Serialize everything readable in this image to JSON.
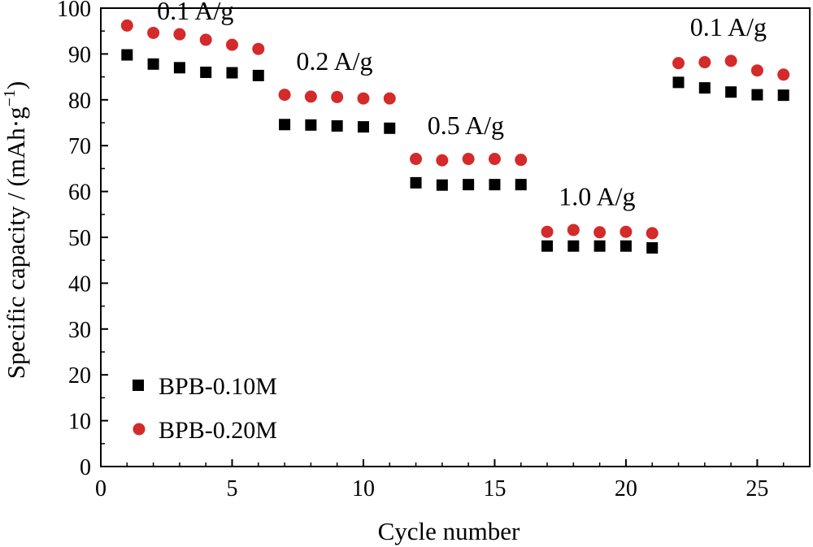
{
  "chart_data": {
    "type": "scatter",
    "xlabel": "Cycle number",
    "ylabel": "Specific capacity / (mAh·g",
    "ylabel_sup": "−1",
    "ylabel_close": ")",
    "xlim": [
      0,
      27
    ],
    "ylim": [
      0,
      100
    ],
    "xticks": [
      0,
      5,
      10,
      15,
      20,
      25
    ],
    "yticks": [
      0,
      10,
      20,
      30,
      40,
      50,
      60,
      70,
      80,
      90,
      100
    ],
    "grid": false,
    "legend_position": "bottom-left",
    "series": [
      {
        "name": "BPB-0.10M",
        "marker": "square",
        "color": "#000000",
        "x": [
          1,
          2,
          3,
          4,
          5,
          6,
          7,
          8,
          9,
          10,
          11,
          12,
          13,
          14,
          15,
          16,
          17,
          18,
          19,
          20,
          21,
          22,
          23,
          24,
          25,
          26
        ],
        "y": [
          89.8,
          87.8,
          87.0,
          86.0,
          85.9,
          85.3,
          74.6,
          74.5,
          74.3,
          74.1,
          73.8,
          61.9,
          61.4,
          61.5,
          61.5,
          61.5,
          48.1,
          48.1,
          48.1,
          48.1,
          47.7,
          83.8,
          82.6,
          81.7,
          81.1,
          81.0
        ]
      },
      {
        "name": "BPB-0.20M",
        "marker": "circle",
        "color": "#d42a2a",
        "x": [
          1,
          2,
          3,
          4,
          5,
          6,
          7,
          8,
          9,
          10,
          11,
          12,
          13,
          14,
          15,
          16,
          17,
          18,
          19,
          20,
          21,
          22,
          23,
          24,
          25,
          26
        ],
        "y": [
          96.2,
          94.6,
          94.3,
          93.1,
          92.0,
          91.1,
          81.1,
          80.7,
          80.6,
          80.3,
          80.3,
          67.1,
          66.8,
          67.1,
          67.1,
          66.9,
          51.2,
          51.6,
          51.1,
          51.2,
          50.9,
          88.0,
          88.2,
          88.5,
          86.4,
          85.5
        ]
      }
    ],
    "annotations": [
      {
        "text": "0.1 A/g",
        "x": 3.6,
        "y": 97.5
      },
      {
        "text": "0.2 A/g",
        "x": 8.9,
        "y": 86.5
      },
      {
        "text": "0.5 A/g",
        "x": 13.9,
        "y": 72.5
      },
      {
        "text": "1.0 A/g",
        "x": 18.9,
        "y": 57.0
      },
      {
        "text": "0.1 A/g",
        "x": 23.9,
        "y": 94.0
      }
    ]
  }
}
